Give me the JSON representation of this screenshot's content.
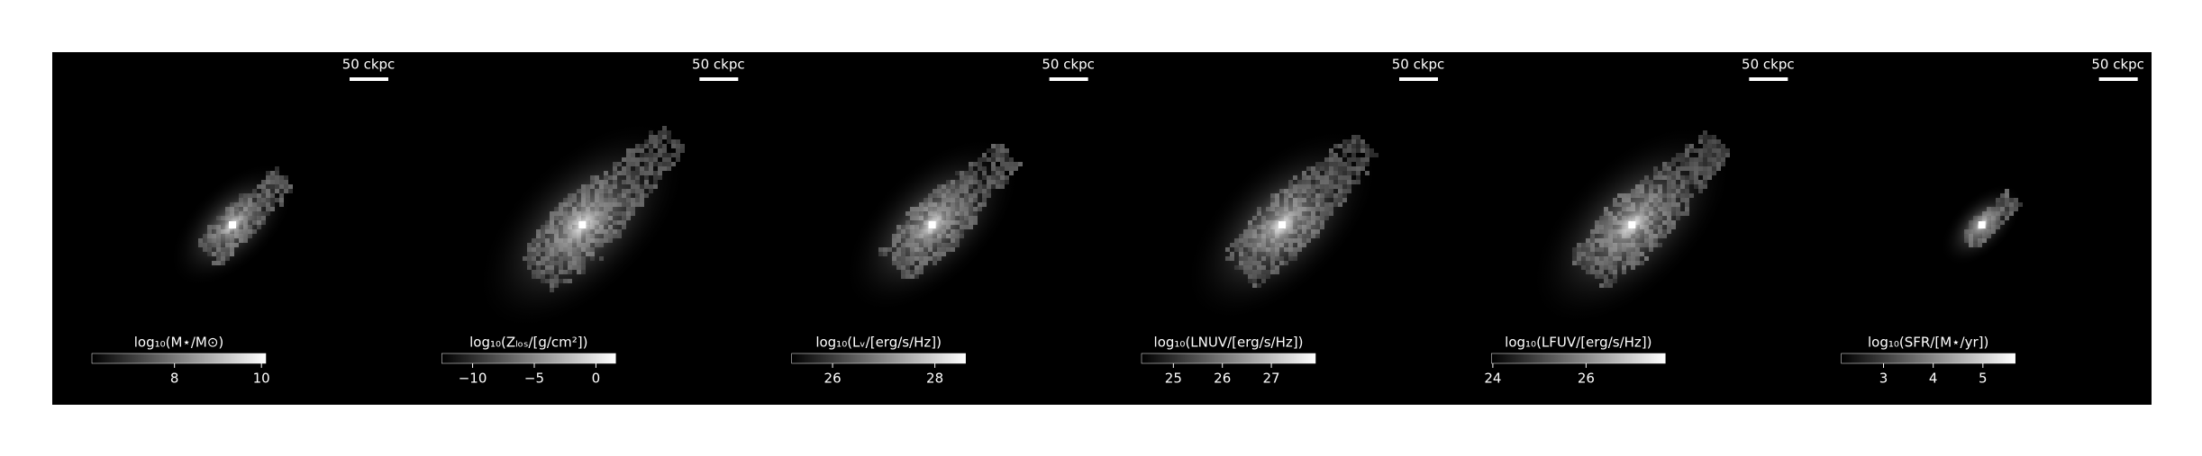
{
  "chart_data": [
    {
      "type": "image",
      "scale_label": "50 ckpc",
      "colorbar_label": "log₁₀(M⋆/M⊙)",
      "clim": [
        6.1,
        10.1
      ],
      "cticks": [
        8,
        10
      ]
    },
    {
      "type": "image",
      "scale_label": "50 ckpc",
      "colorbar_label": "log₁₀(Zₗₒₛ/[g/cm²])",
      "clim": [
        -12.5,
        1.6
      ],
      "cticks": [
        {
          "value": -10,
          "label": "−10"
        },
        {
          "value": -5,
          "label": "−5"
        },
        0
      ]
    },
    {
      "type": "image",
      "scale_label": "50 ckpc",
      "colorbar_label": "log₁₀(Lᵥ/[erg/s/Hz])",
      "clim": [
        25.2,
        28.6
      ],
      "cticks": [
        26,
        28
      ]
    },
    {
      "type": "image",
      "scale_label": "50 ckpc",
      "colorbar_label": "log₁₀(LNUV/[erg/s/Hz])",
      "clim": [
        24.35,
        27.9
      ],
      "cticks": [
        25,
        26,
        27
      ]
    },
    {
      "type": "image",
      "scale_label": "50 ckpc",
      "colorbar_label": "log₁₀(LFUV/[erg/s/Hz])",
      "clim": [
        23.97,
        27.7
      ],
      "cticks": [
        24,
        26
      ]
    },
    {
      "type": "image",
      "scale_label": "50 ckpc",
      "colorbar_label": "log₁₀(SFR/[M⋆/yr])",
      "clim": [
        2.15,
        5.65
      ],
      "cticks": [
        3,
        4,
        5
      ]
    }
  ]
}
